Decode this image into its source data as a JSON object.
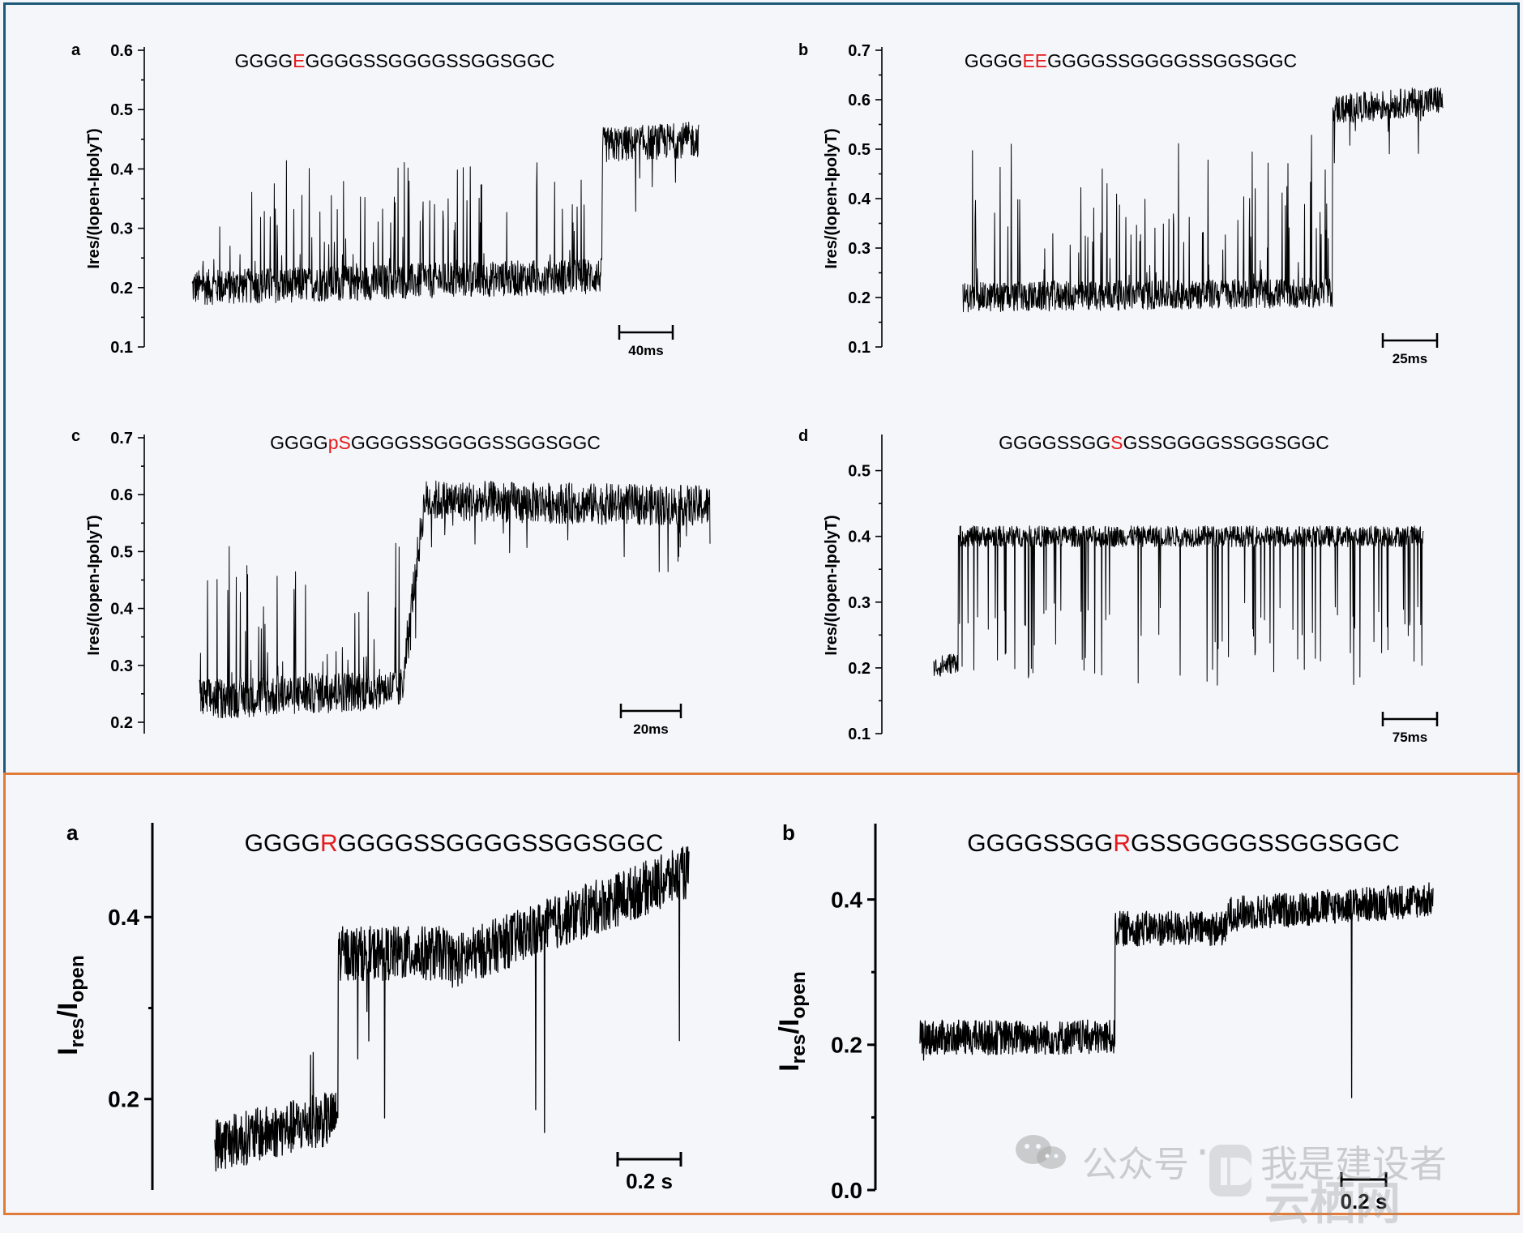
{
  "colors": {
    "mutation": "#e41a1c",
    "trace": "#000000",
    "top_border": "#1e5a78",
    "bottom_border": "#e07b39",
    "watermark": "#a0a0a0"
  },
  "watermark": {
    "icon": "wechat-icon",
    "channel": "公众号",
    "separator": "·",
    "name": "我是建设者",
    "site_icon": "site-logo-icon",
    "site": "云栖网"
  },
  "chart_data": [
    {
      "type": "line",
      "panel": "a",
      "group": "top",
      "seq_prefix": "GGGG",
      "seq_mut": "E",
      "seq_suffix": "GGGGSSGGGGSSGGSGGC",
      "ylabel": "Ires/(Iopen-IpolyT)",
      "xlabel": "",
      "ylim": [
        0.1,
        0.6
      ],
      "yticks": [
        0.1,
        0.2,
        0.3,
        0.4,
        0.5,
        0.6
      ],
      "yticklabels": [
        "0.1",
        "0.2",
        "0.3",
        "0.4",
        "0.5",
        "0.6"
      ],
      "scalebar": "40ms",
      "scalebar_ms": 40,
      "duration_ms": 380,
      "segments": [
        {
          "t0": 0,
          "t1": 0.81,
          "v0": 0.2,
          "v1": 0.22
        },
        {
          "t0": 0.81,
          "t1": 1.0,
          "v0": 0.44,
          "v1": 0.45
        }
      ],
      "spike_range": [
        0.3,
        0.44
      ],
      "noise": 0.015
    },
    {
      "type": "line",
      "panel": "b",
      "group": "top",
      "seq_prefix": "GGGG",
      "seq_mut": "EE",
      "seq_suffix": "GGGGSSGGGGSSGGSGGC",
      "ylabel": "Ires/(Iopen-IpolyT)",
      "xlabel": "",
      "ylim": [
        0.1,
        0.7
      ],
      "yticks": [
        0.1,
        0.2,
        0.3,
        0.4,
        0.5,
        0.6,
        0.7
      ],
      "yticklabels": [
        "0.1",
        "0.2",
        "0.3",
        "0.4",
        "0.5",
        "0.6",
        "0.7"
      ],
      "scalebar": "25ms",
      "scalebar_ms": 25,
      "duration_ms": 220,
      "segments": [
        {
          "t0": 0,
          "t1": 0.77,
          "v0": 0.2,
          "v1": 0.21
        },
        {
          "t0": 0.77,
          "t1": 1.0,
          "v0": 0.58,
          "v1": 0.6
        }
      ],
      "spike_range": [
        0.35,
        0.55
      ],
      "noise": 0.015
    },
    {
      "type": "line",
      "panel": "c",
      "group": "top",
      "seq_prefix": "GGGG",
      "seq_mut": "pS",
      "seq_suffix": "GGGGSSGGGGSSGGSGGC",
      "ylabel": "Ires/(Iopen-IpolyT)",
      "xlabel": "",
      "ylim": [
        0.18,
        0.7
      ],
      "yticks": [
        0.2,
        0.3,
        0.4,
        0.5,
        0.6,
        0.7
      ],
      "yticklabels": [
        "0.2",
        "0.3",
        "0.4",
        "0.5",
        "0.6",
        "0.7"
      ],
      "scalebar": "20ms",
      "scalebar_ms": 20,
      "duration_ms": 165,
      "segments": [
        {
          "t0": 0,
          "t1": 0.4,
          "v0": 0.24,
          "v1": 0.26
        },
        {
          "t0": 0.4,
          "t1": 0.44,
          "v0": 0.3,
          "v1": 0.58
        },
        {
          "t0": 0.44,
          "t1": 1.0,
          "v0": 0.59,
          "v1": 0.58
        }
      ],
      "spike_range": [
        0.35,
        0.58
      ],
      "noise": 0.018
    },
    {
      "type": "line",
      "panel": "d",
      "group": "top",
      "seq_prefix": "GGGGSSGG",
      "seq_mut": "S",
      "seq_suffix": "GSSGGGGSSGGSGGC",
      "ylabel": "Ires/(Iopen-IpolyT)",
      "xlabel": "",
      "ylim": [
        0.1,
        0.55
      ],
      "yticks": [
        0.1,
        0.2,
        0.3,
        0.4,
        0.5
      ],
      "yticklabels": [
        "0.1",
        "0.2",
        "0.3",
        "0.4",
        "0.5"
      ],
      "scalebar": "75ms",
      "scalebar_ms": 75,
      "duration_ms": 660,
      "segments": [
        {
          "t0": 0,
          "t1": 0.05,
          "v0": 0.2,
          "v1": 0.21
        },
        {
          "t0": 0.05,
          "t1": 1.0,
          "v0": 0.4,
          "v1": 0.4
        }
      ],
      "spike_range": [
        0.17,
        0.3
      ],
      "noise": 0.008
    },
    {
      "type": "line",
      "panel": "a",
      "group": "bottom",
      "seq_prefix": "GGGG",
      "seq_mut": "R",
      "seq_suffix": "GGGGSSGGGGSSGGSGGC",
      "ylabel_main": "I",
      "ylabel_sub1": "res",
      "ylabel_mid": "/I",
      "ylabel_sub2": "open",
      "xlabel": "",
      "ylim": [
        0.1,
        0.5
      ],
      "yticks": [
        0.2,
        0.4
      ],
      "yticklabels": [
        "0.2",
        "0.4"
      ],
      "scalebar": "0.2 s",
      "scalebar_s": 0.2,
      "duration_s": 1.3,
      "segments": [
        {
          "t0": 0,
          "t1": 0.26,
          "v0": 0.15,
          "v1": 0.18
        },
        {
          "t0": 0.26,
          "t1": 0.5,
          "v0": 0.36,
          "v1": 0.36
        },
        {
          "t0": 0.5,
          "t1": 1.0,
          "v0": 0.35,
          "v1": 0.45
        }
      ],
      "spike_range": [
        0.16,
        0.3
      ],
      "noise": 0.015
    },
    {
      "type": "line",
      "panel": "b",
      "group": "bottom",
      "seq_prefix": "GGGGSSGG",
      "seq_mut": "R",
      "seq_suffix": "GSSGGGGSSGGSGGC",
      "ylabel_main": "I",
      "ylabel_sub1": "res",
      "ylabel_mid": "/I",
      "ylabel_sub2": "open",
      "xlabel": "",
      "ylim": [
        0.0,
        0.5
      ],
      "yticks": [
        0.0,
        0.2,
        0.4
      ],
      "yticklabels": [
        "0.0",
        "0.2",
        "0.4"
      ],
      "scalebar": "0.2 s",
      "scalebar_s": 0.2,
      "duration_s": 2.6,
      "segments": [
        {
          "t0": 0,
          "t1": 0.38,
          "v0": 0.21,
          "v1": 0.21
        },
        {
          "t0": 0.38,
          "t1": 0.6,
          "v0": 0.36,
          "v1": 0.36
        },
        {
          "t0": 0.6,
          "t1": 1.0,
          "v0": 0.38,
          "v1": 0.4
        }
      ],
      "spike_range": [
        0.09,
        0.22
      ],
      "noise": 0.012
    }
  ]
}
